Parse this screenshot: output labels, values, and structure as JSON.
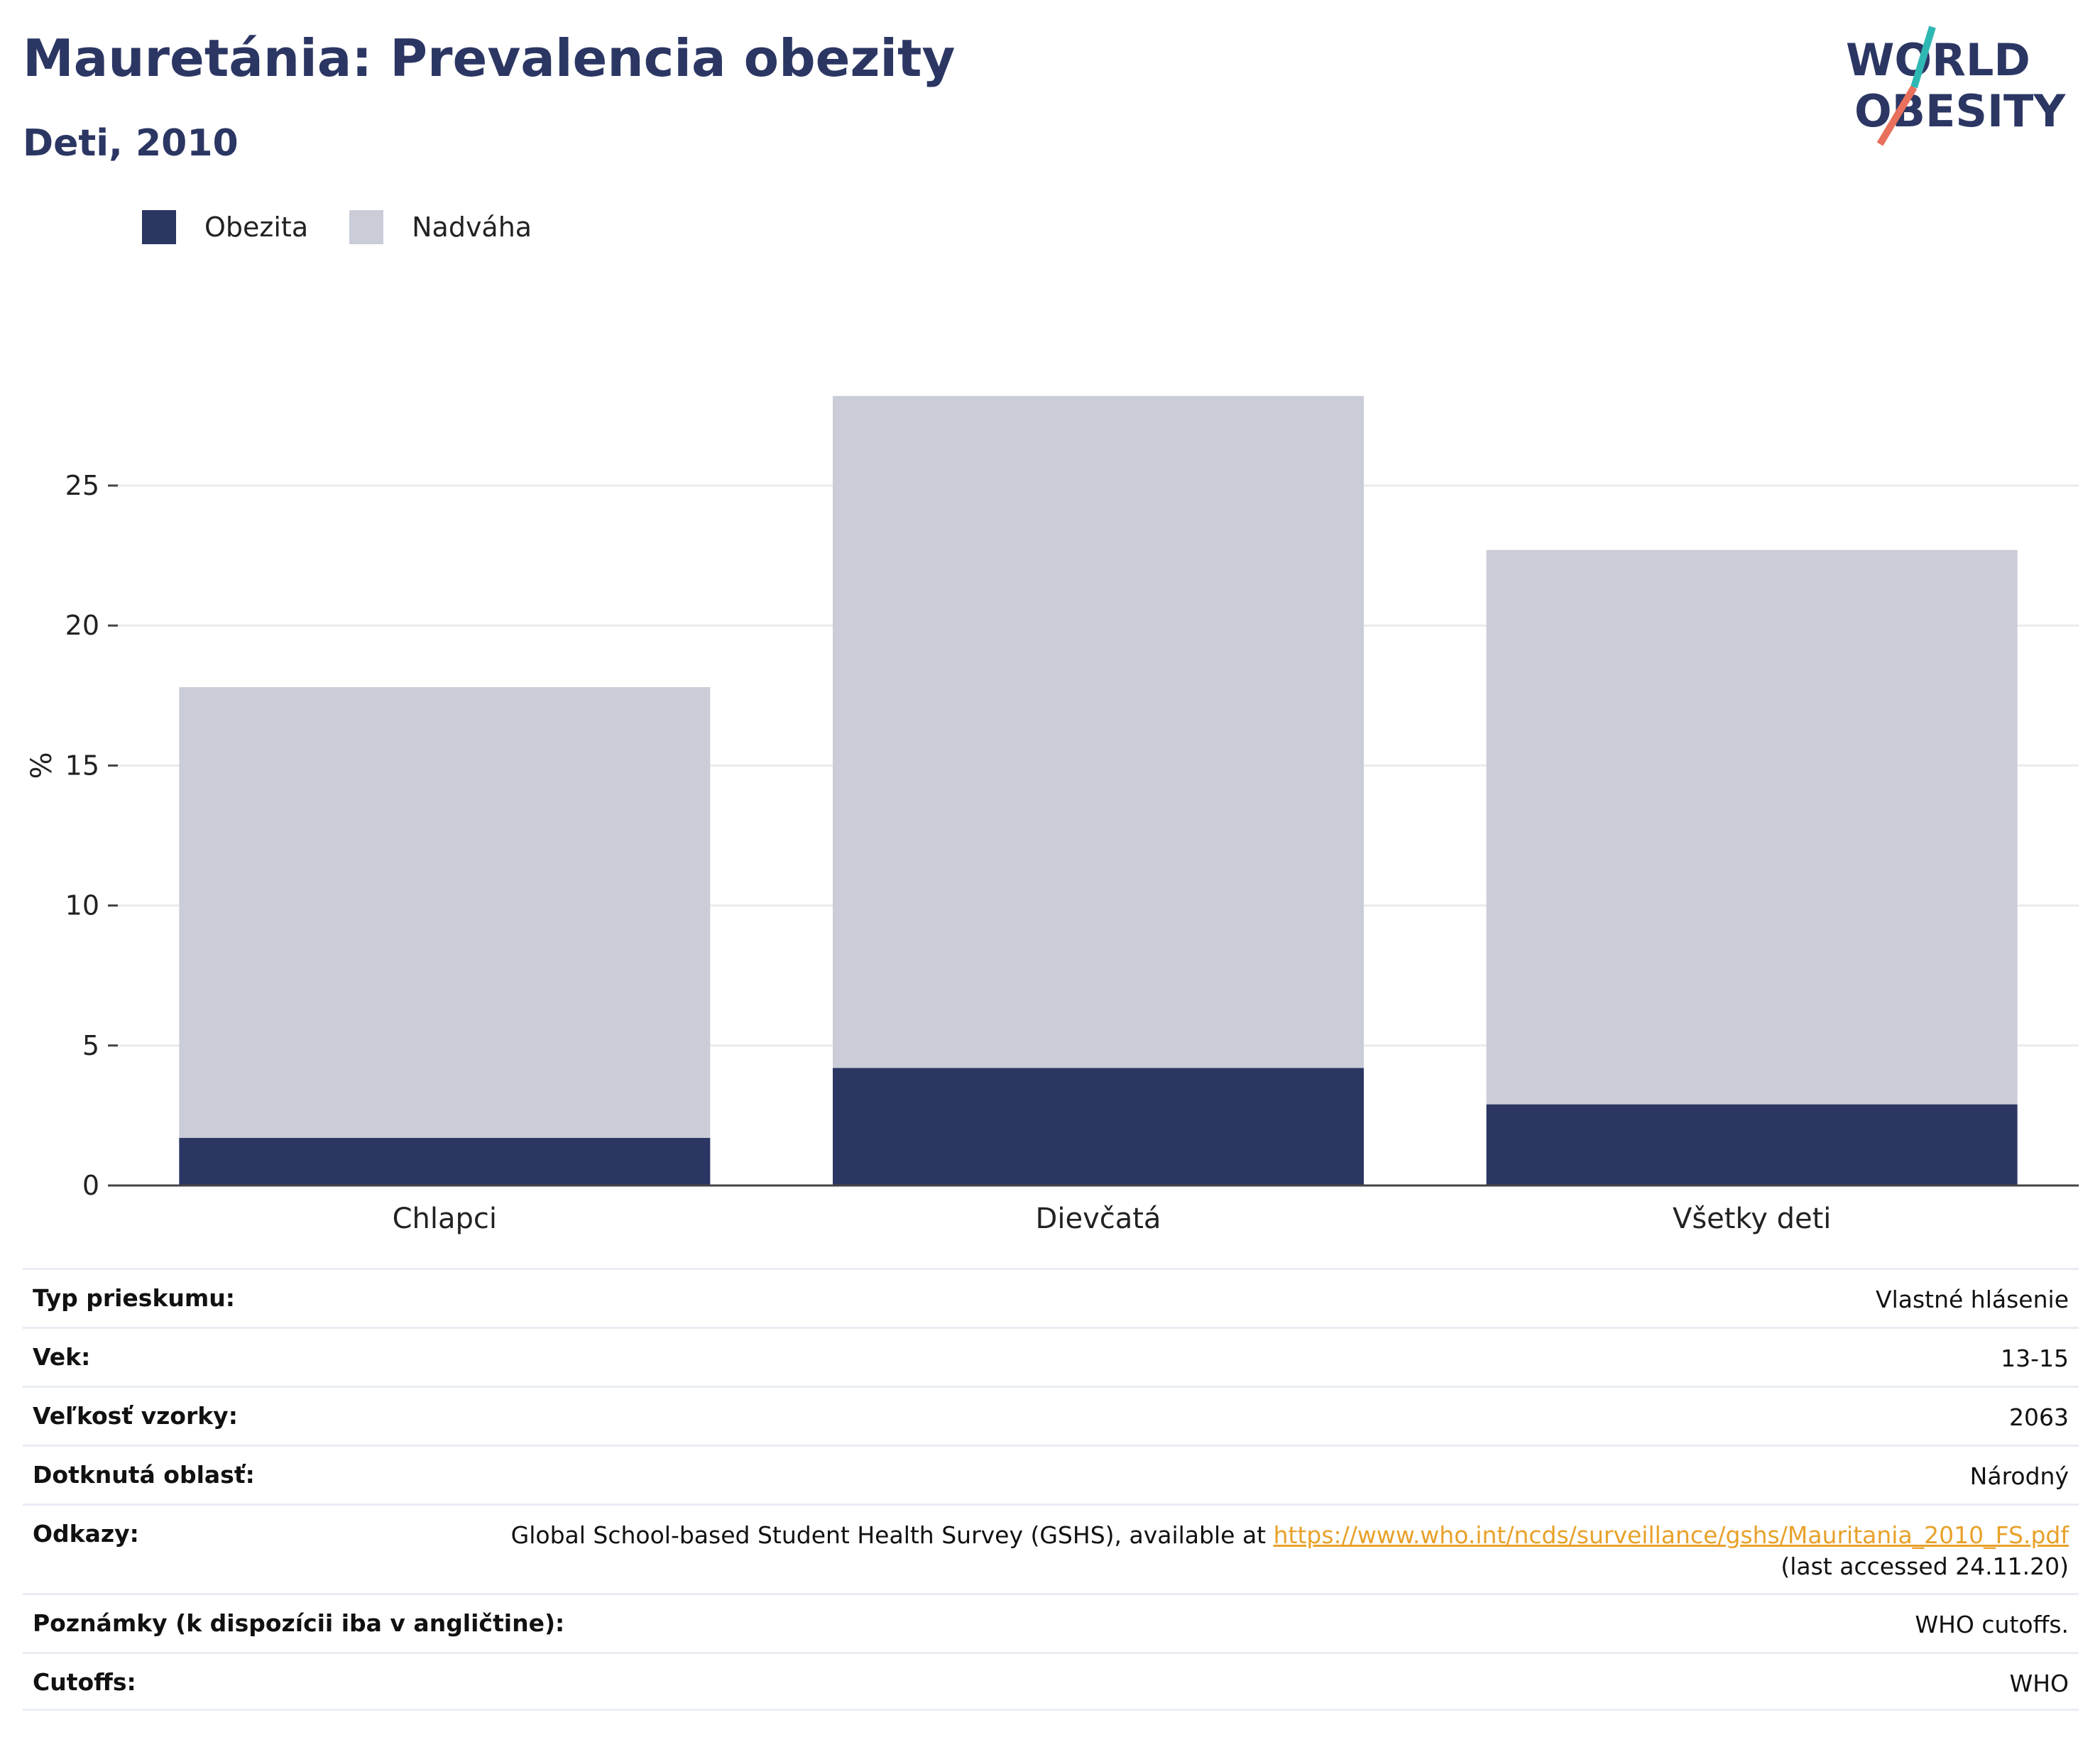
{
  "header": {
    "title": "Mauretánia: Prevalencia obezity",
    "subtitle": "Deti, 2010"
  },
  "logo": {
    "line1": "WORLD",
    "line2": "OBESITY"
  },
  "chart_data": {
    "type": "bar",
    "stacked": true,
    "categories": [
      "Chlapci",
      "Dievčatá",
      "Všetky deti"
    ],
    "series": [
      {
        "name": "Obezita",
        "values": [
          1.7,
          4.2,
          2.9
        ],
        "color": "#2b3663"
      },
      {
        "name": "Nadváha",
        "values": [
          16.1,
          24.0,
          19.8
        ],
        "color": "#cacdd8"
      }
    ],
    "ylabel": "%",
    "xlabel": "",
    "ylim": [
      0,
      30
    ],
    "yticks": [
      0,
      5,
      10,
      15,
      20,
      25
    ],
    "grid": true,
    "legend_position": "top-left"
  },
  "info": {
    "survey_type": {
      "label": "Typ prieskumu:",
      "value": "Vlastné hlásenie"
    },
    "age": {
      "label": "Vek:",
      "value": "13-15"
    },
    "sample_size": {
      "label": "Veľkosť vzorky:",
      "value": "2063"
    },
    "area": {
      "label": "Dotknutá oblasť:",
      "value": "Národný"
    },
    "references": {
      "label": "Odkazy:",
      "text": "Global School-based Student Health Survey (GSHS), available at ",
      "link": "https://www.who.int/ncds/surveillance/gshs/Mauritania_2010_FS.pdf",
      "accessed": "(last accessed 24.11.20)"
    },
    "notes": {
      "label": "Poznámky (k dispozícii iba v angličtine):",
      "value": "WHO cutoffs."
    },
    "cutoffs": {
      "label": "Cutoffs:",
      "value": "WHO"
    }
  }
}
